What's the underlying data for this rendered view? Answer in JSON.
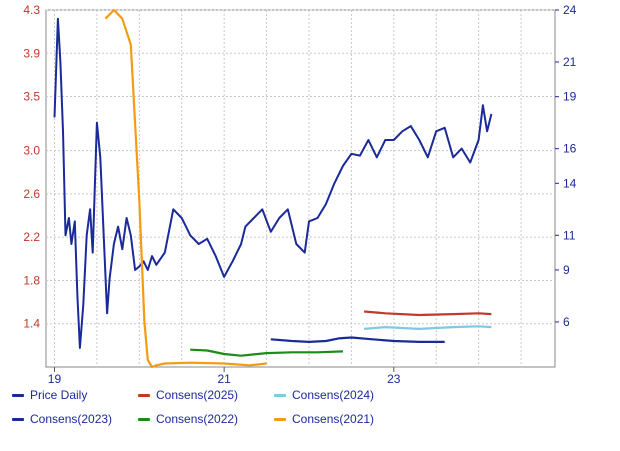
{
  "chart_data": {
    "type": "line",
    "title": "",
    "x_ticks": [
      "19",
      "21",
      "23"
    ],
    "left_axis": {
      "ticks": [
        "4.3",
        "3.9",
        "3.5",
        "3.0",
        "2.6",
        "2.2",
        "1.8",
        "1.4"
      ],
      "ylim": [
        1.0,
        4.3
      ]
    },
    "right_axis": {
      "ticks": [
        "24",
        "21",
        "19",
        "16",
        "14",
        "11",
        "9",
        "6"
      ],
      "ylim": [
        3.4,
        24
      ]
    },
    "xlim": [
      2018.9,
      2024.9
    ],
    "grid": true,
    "series": [
      {
        "name": "Price Daily",
        "axis": "right",
        "color": "#1a2a99",
        "x": [
          2019.0,
          2019.04,
          2019.07,
          2019.1,
          2019.13,
          2019.17,
          2019.2,
          2019.24,
          2019.27,
          2019.3,
          2019.34,
          2019.38,
          2019.42,
          2019.45,
          2019.5,
          2019.54,
          2019.58,
          2019.62,
          2019.65,
          2019.7,
          2019.75,
          2019.8,
          2019.85,
          2019.9,
          2019.95,
          2020.0,
          2020.05,
          2020.1,
          2020.15,
          2020.2,
          2020.3,
          2020.4,
          2020.5,
          2020.55,
          2020.6,
          2020.7,
          2020.8,
          2020.9,
          2021.0,
          2021.1,
          2021.2,
          2021.25,
          2021.35,
          2021.45,
          2021.55,
          2021.65,
          2021.75,
          2021.85,
          2021.95,
          2022.0,
          2022.1,
          2022.2,
          2022.3,
          2022.4,
          2022.5,
          2022.6,
          2022.7,
          2022.8,
          2022.9,
          2023.0,
          2023.1,
          2023.2,
          2023.3,
          2023.4,
          2023.5,
          2023.6,
          2023.7,
          2023.8,
          2023.9,
          2024.0,
          2024.05,
          2024.1,
          2024.15
        ],
        "values": [
          17.8,
          23.5,
          21.0,
          17.0,
          11.0,
          12.0,
          10.5,
          11.8,
          7.5,
          4.5,
          7.0,
          11.0,
          12.5,
          10.0,
          17.5,
          15.5,
          11.0,
          6.5,
          8.5,
          10.5,
          11.5,
          10.2,
          12.0,
          11.0,
          9.0,
          9.2,
          9.5,
          9.0,
          9.8,
          9.3,
          10.0,
          12.5,
          12.0,
          11.5,
          11.0,
          10.5,
          10.8,
          9.8,
          8.6,
          9.5,
          10.5,
          11.5,
          12.0,
          12.5,
          11.2,
          12.0,
          12.5,
          10.5,
          10.0,
          11.8,
          12.0,
          12.8,
          14.0,
          15.0,
          15.7,
          15.6,
          16.5,
          15.5,
          16.5,
          16.5,
          17.0,
          17.3,
          16.5,
          15.5,
          17.0,
          17.2,
          15.5,
          16.0,
          15.2,
          16.5,
          18.5,
          17.0,
          18.0
        ]
      },
      {
        "name": "Consens(2025)",
        "axis": "right",
        "color": "#c0392b",
        "x": [
          2022.65,
          2022.9,
          2023.3,
          2023.7,
          2024.0,
          2024.15
        ],
        "values": [
          6.6,
          6.5,
          6.4,
          6.45,
          6.5,
          6.45
        ]
      },
      {
        "name": "Consens(2024)",
        "axis": "right",
        "color": "#7fc8e8",
        "x": [
          2022.65,
          2022.9,
          2023.3,
          2023.7,
          2024.0,
          2024.15
        ],
        "values": [
          5.6,
          5.7,
          5.6,
          5.7,
          5.75,
          5.7
        ]
      },
      {
        "name": "Consens(2023)",
        "axis": "right",
        "color": "#1a2a99",
        "x": [
          2021.55,
          2021.8,
          2022.0,
          2022.2,
          2022.35,
          2022.5,
          2022.75,
          2023.0,
          2023.3,
          2023.6
        ],
        "values": [
          5.0,
          4.9,
          4.85,
          4.9,
          5.05,
          5.1,
          5.0,
          4.9,
          4.85,
          4.85
        ]
      },
      {
        "name": "Consens(2022)",
        "axis": "right",
        "color": "#1a8c1a",
        "x": [
          2020.6,
          2020.8,
          2021.0,
          2021.2,
          2021.5,
          2021.8,
          2022.1,
          2022.4
        ],
        "values": [
          4.4,
          4.35,
          4.15,
          4.05,
          4.2,
          4.25,
          4.25,
          4.3
        ]
      },
      {
        "name": "Consens(2021)",
        "axis": "right",
        "color": "#f39c12",
        "x": [
          2019.6,
          2019.7,
          2019.8,
          2019.9,
          2020.0,
          2020.06,
          2020.1,
          2020.15,
          2020.2,
          2020.3,
          2020.6,
          2021.0,
          2021.3,
          2021.5
        ],
        "values": [
          23.5,
          24.0,
          23.5,
          22.0,
          13.0,
          6.0,
          3.8,
          3.4,
          3.5,
          3.6,
          3.65,
          3.6,
          3.5,
          3.6
        ]
      }
    ],
    "legend": {
      "placement": "bottom",
      "entries": [
        [
          "Price Daily",
          "Consens(2025)",
          "Consens(2024)"
        ],
        [
          "Consens(2023)",
          "Consens(2022)",
          "Consens(2021)"
        ]
      ]
    }
  }
}
